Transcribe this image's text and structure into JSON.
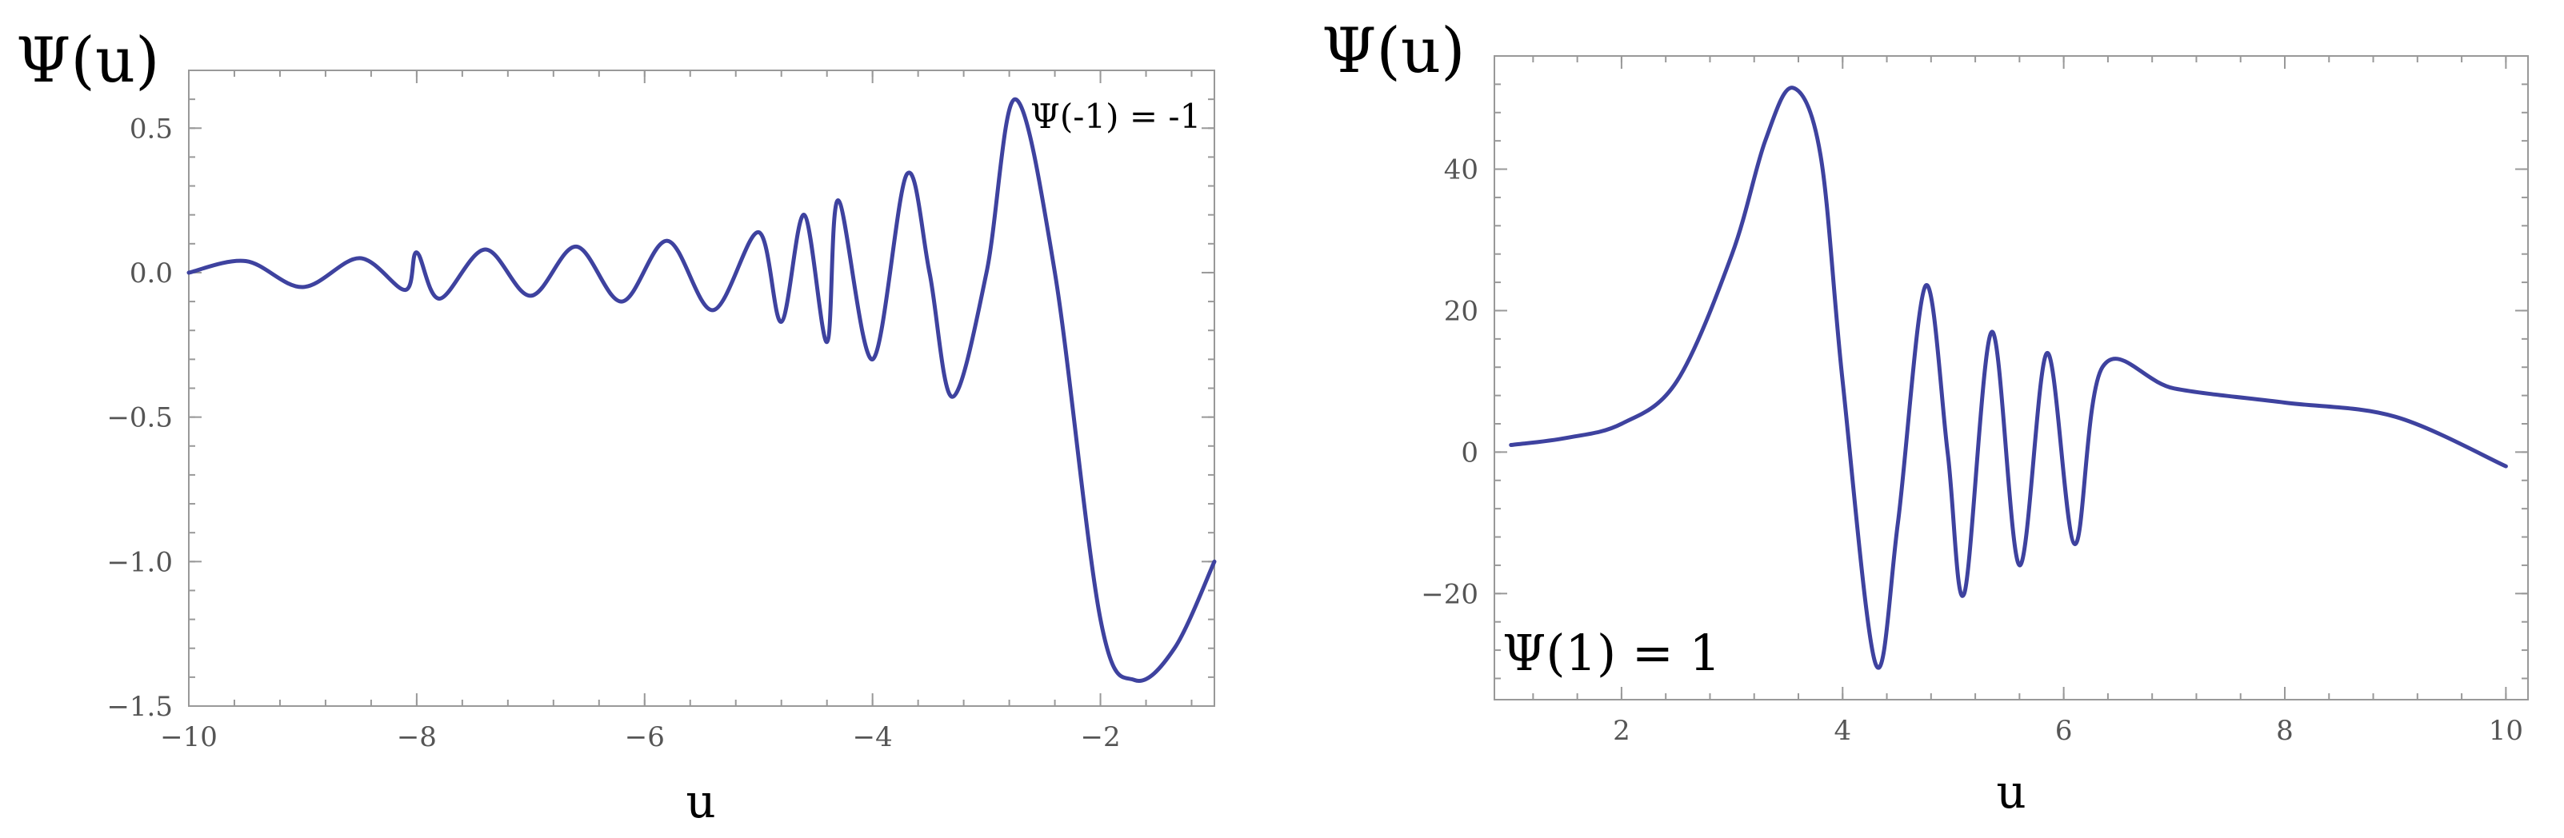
{
  "colors": {
    "curve": "#3e429f",
    "frame": "#999999",
    "tick_text": "#555555"
  },
  "chart_data": [
    {
      "type": "line",
      "title": "",
      "xlabel": "u",
      "ylabel": "Ψ(u)",
      "annotation": "Ψ(-1) = -1",
      "xlim": [
        -10,
        -1
      ],
      "ylim": [
        -1.5,
        0.7
      ],
      "xticks": [
        -10,
        -8,
        -6,
        -4,
        -2
      ],
      "xtick_labels": [
        "−10",
        "−8",
        "−6",
        "−4",
        "−2"
      ],
      "yticks": [
        -1.5,
        -1.0,
        -0.5,
        0.0,
        0.5
      ],
      "ytick_labels": [
        "−1.5",
        "−1.0",
        "−0.5",
        "0.0",
        "0.5"
      ],
      "grid": false,
      "series": [
        {
          "x": [
            -10,
            -9.5,
            -9.0,
            -8.5,
            -8.1,
            -8.0,
            -7.8,
            -7.4,
            -7.0,
            -6.6,
            -6.2,
            -5.8,
            -5.4,
            -5.0,
            -4.8,
            -4.6,
            -4.4,
            -4.3,
            -4.0,
            -3.7,
            -3.5,
            -3.3,
            -3.0,
            -2.75,
            -2.4,
            -2.0,
            -1.7,
            -1.35,
            -1.0
          ],
          "y": [
            0.0,
            0.04,
            -0.05,
            0.05,
            -0.06,
            0.07,
            -0.09,
            0.08,
            -0.08,
            0.09,
            -0.1,
            0.11,
            -0.13,
            0.14,
            -0.17,
            0.2,
            -0.24,
            0.25,
            -0.3,
            0.34,
            0.0,
            -0.43,
            0.0,
            0.6,
            0.0,
            -1.2,
            -1.41,
            -1.3,
            -1.0
          ]
        }
      ]
    },
    {
      "type": "line",
      "title": "",
      "xlabel": "u",
      "ylabel": "Ψ(u)",
      "annotation": "Ψ(1) = 1",
      "xlim": [
        0.85,
        10.2
      ],
      "ylim": [
        -35,
        56
      ],
      "xticks": [
        2,
        4,
        6,
        8,
        10
      ],
      "xtick_labels": [
        "2",
        "4",
        "6",
        "8",
        "10"
      ],
      "yticks": [
        -20,
        0,
        20,
        40
      ],
      "ytick_labels": [
        "−20",
        "0",
        "20",
        "40"
      ],
      "grid": false,
      "series": [
        {
          "x": [
            1.0,
            1.5,
            2.0,
            2.5,
            3.0,
            3.3,
            3.55,
            3.8,
            4.0,
            4.3,
            4.5,
            4.75,
            4.95,
            5.1,
            5.35,
            5.6,
            5.85,
            6.1,
            6.35,
            7.0,
            8.0,
            9.0,
            10.0
          ],
          "y": [
            1.0,
            2.0,
            4.0,
            10.0,
            28.0,
            44.0,
            51.5,
            42.0,
            10.0,
            -30.0,
            -10.0,
            23.5,
            0.0,
            -20.0,
            17.0,
            -16.0,
            14.0,
            -13.0,
            12.0,
            9.0,
            7.0,
            5.0,
            -2.0
          ]
        }
      ]
    }
  ]
}
